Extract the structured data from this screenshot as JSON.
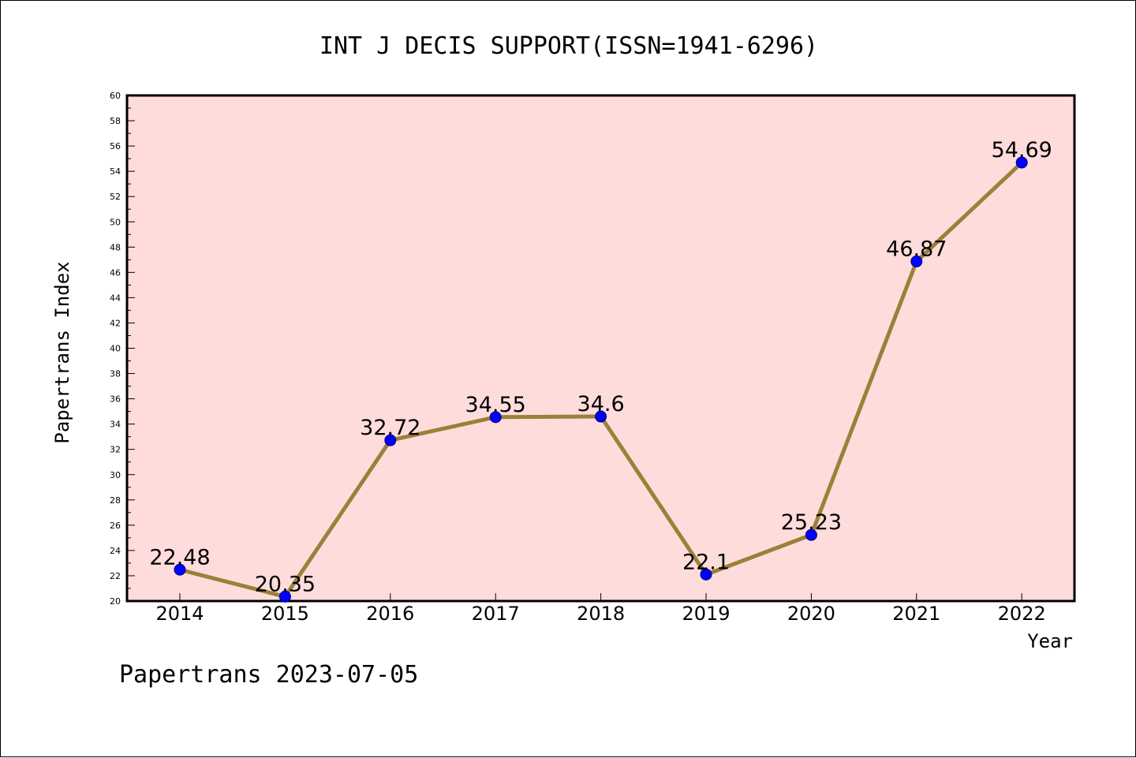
{
  "chart_data": {
    "type": "line",
    "title": "INT J DECIS SUPPORT(ISSN=1941-6296)",
    "xlabel": "Year",
    "ylabel": "Papertrans Index",
    "categories": [
      "2014",
      "2015",
      "2016",
      "2017",
      "2018",
      "2019",
      "2020",
      "2021",
      "2022"
    ],
    "series": [
      {
        "values": [
          22.48,
          20.35,
          32.72,
          34.55,
          34.6,
          22.1,
          25.23,
          46.87,
          54.69
        ],
        "labels": [
          "22.48",
          "20.35",
          "32.72",
          "34.55",
          "34.6",
          "22.1",
          "25.23",
          "46.87",
          "54.69"
        ]
      }
    ],
    "ylim": [
      20,
      60
    ],
    "yticks": [
      "20",
      "22",
      "24",
      "26",
      "28",
      "30",
      "32",
      "34",
      "36",
      "38",
      "40",
      "42",
      "44",
      "46",
      "48",
      "50",
      "52",
      "54",
      "56",
      "58",
      "60"
    ],
    "grid": false,
    "colors": {
      "plot_background": "#ffdcdc",
      "line": "#9b8039",
      "marker": "#0000ff"
    }
  },
  "footer": {
    "watermark": "Papertrans 2023-07-05"
  }
}
